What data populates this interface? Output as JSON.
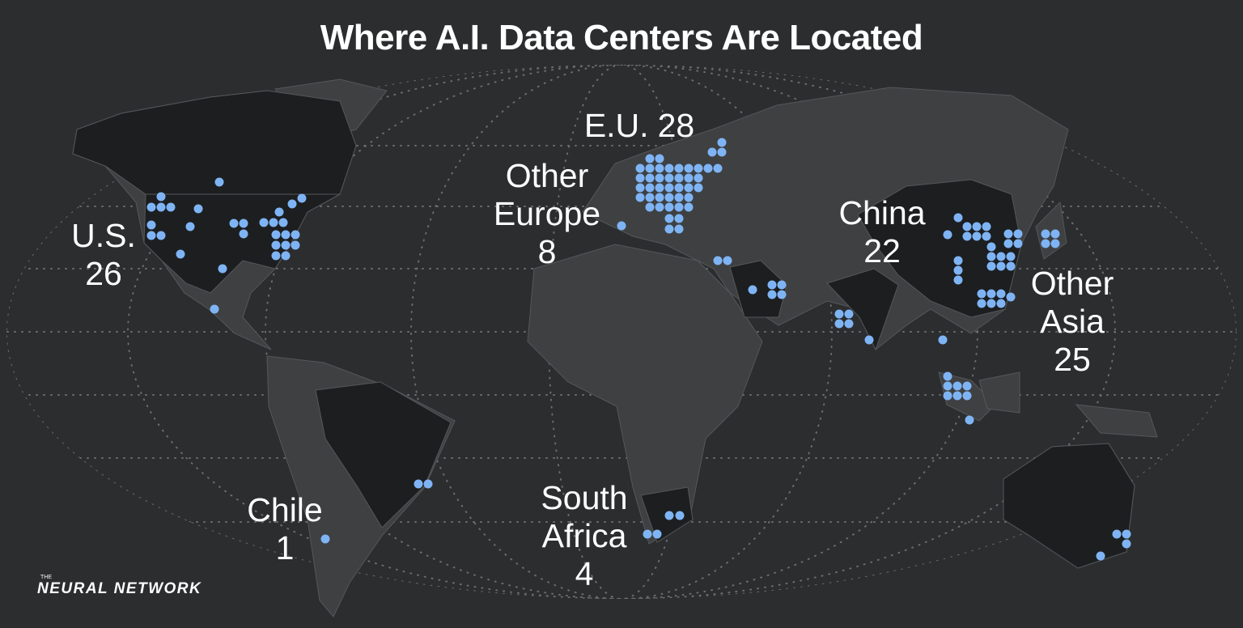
{
  "title": "Where A.I. Data Centers Are Located",
  "regions": [
    {
      "name": "U.S.",
      "count": 26
    },
    {
      "name": "Chile",
      "count": 1
    },
    {
      "name": "South Africa",
      "count": 4
    },
    {
      "name": "Other Europe",
      "count": 8
    },
    {
      "name": "E.U.",
      "count": 28
    },
    {
      "name": "China",
      "count": 22
    },
    {
      "name": "Other Asia",
      "count": 25
    }
  ],
  "logo": {
    "small": "THE",
    "text": "NEURAL NETWORK"
  }
}
